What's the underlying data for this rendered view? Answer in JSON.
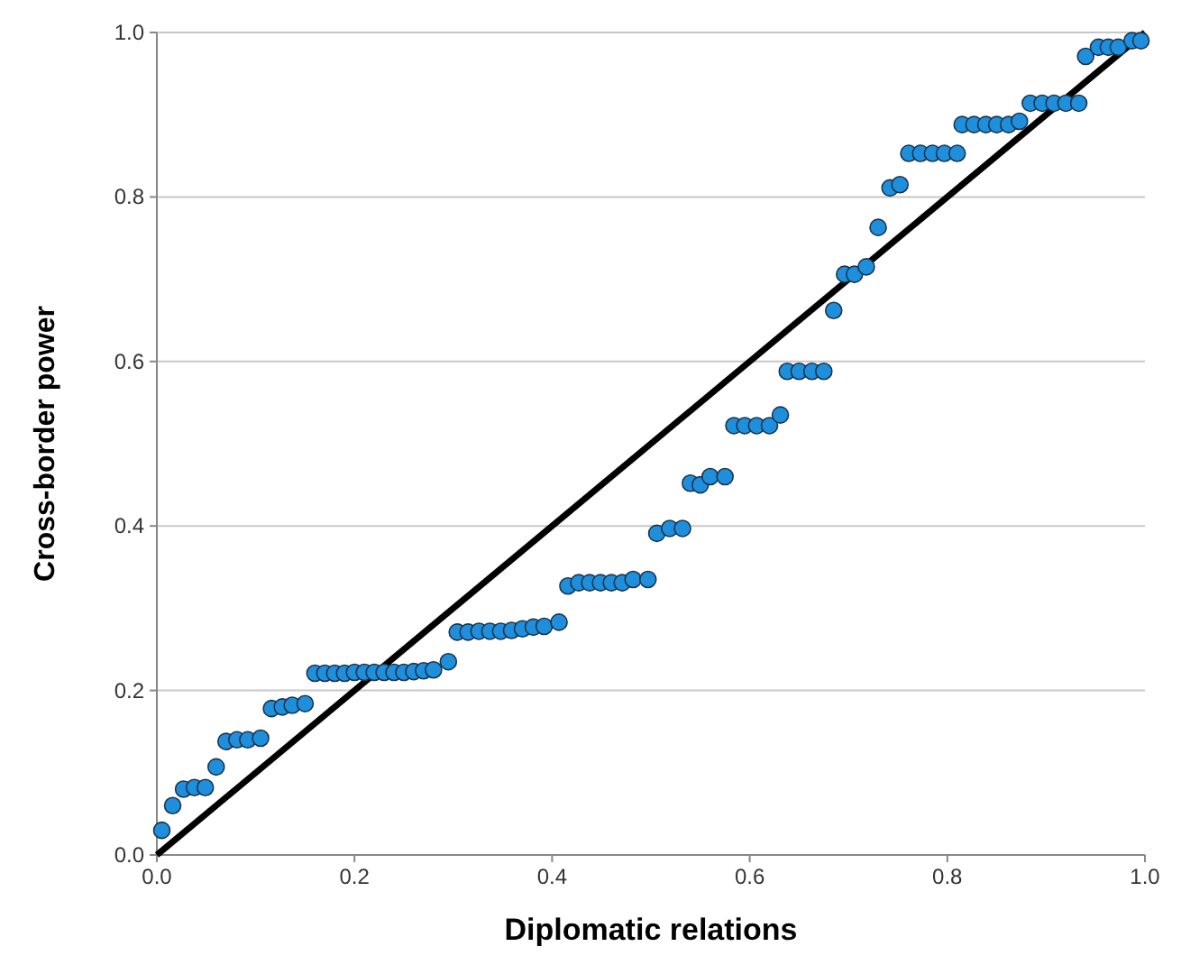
{
  "chart_data": {
    "type": "scatter",
    "xlabel": "Diplomatic relations",
    "ylabel": "Cross-border power",
    "xlim": [
      0,
      1
    ],
    "ylim": [
      0,
      1
    ],
    "xticks": [
      {
        "value": 0,
        "label": "0.0"
      },
      {
        "value": 0.2,
        "label": "0.2"
      },
      {
        "value": 0.4,
        "label": "0.4"
      },
      {
        "value": 0.6,
        "label": "0.6"
      },
      {
        "value": 0.8,
        "label": "0.8"
      },
      {
        "value": 1,
        "label": "1.0"
      }
    ],
    "yticks": [
      {
        "value": 0,
        "label": "0.0"
      },
      {
        "value": 0.2,
        "label": "0.2"
      },
      {
        "value": 0.4,
        "label": "0.4"
      },
      {
        "value": 0.6,
        "label": "0.6"
      },
      {
        "value": 0.8,
        "label": "0.8"
      },
      {
        "value": 1,
        "label": "1.0"
      }
    ],
    "grid": "y",
    "marker": "circle",
    "series": [
      {
        "color": "#1f8fdc",
        "x": [
          0.005,
          0.016,
          0.027,
          0.038,
          0.049,
          0.06,
          0.07,
          0.081,
          0.092,
          0.105,
          0.116,
          0.127,
          0.137,
          0.15,
          0.16,
          0.17,
          0.18,
          0.19,
          0.2,
          0.21,
          0.22,
          0.23,
          0.24,
          0.25,
          0.26,
          0.27,
          0.28,
          0.295,
          0.304,
          0.315,
          0.326,
          0.337,
          0.348,
          0.359,
          0.37,
          0.381,
          0.392,
          0.407,
          0.416,
          0.427,
          0.438,
          0.449,
          0.46,
          0.471,
          0.482,
          0.497,
          0.506,
          0.519,
          0.532,
          0.54,
          0.55,
          0.56,
          0.575,
          0.584,
          0.595,
          0.607,
          0.62,
          0.631,
          0.638,
          0.65,
          0.663,
          0.675,
          0.685,
          0.696,
          0.706,
          0.718,
          0.73,
          0.742,
          0.752,
          0.761,
          0.773,
          0.785,
          0.797,
          0.81,
          0.815,
          0.827,
          0.839,
          0.85,
          0.862,
          0.873,
          0.884,
          0.896,
          0.908,
          0.92,
          0.933,
          0.94,
          0.953,
          0.963,
          0.973,
          0.987,
          0.996
        ],
        "values": [
          0.03,
          0.06,
          0.08,
          0.082,
          0.082,
          0.107,
          0.138,
          0.14,
          0.14,
          0.142,
          0.178,
          0.18,
          0.182,
          0.184,
          0.221,
          0.221,
          0.221,
          0.221,
          0.222,
          0.222,
          0.222,
          0.222,
          0.222,
          0.222,
          0.223,
          0.224,
          0.225,
          0.235,
          0.271,
          0.271,
          0.272,
          0.272,
          0.272,
          0.273,
          0.275,
          0.277,
          0.278,
          0.283,
          0.327,
          0.331,
          0.331,
          0.331,
          0.331,
          0.331,
          0.335,
          0.335,
          0.391,
          0.397,
          0.397,
          0.452,
          0.45,
          0.46,
          0.46,
          0.522,
          0.522,
          0.522,
          0.522,
          0.535,
          0.588,
          0.588,
          0.588,
          0.588,
          0.662,
          0.706,
          0.706,
          0.715,
          0.763,
          0.811,
          0.815,
          0.853,
          0.853,
          0.853,
          0.853,
          0.853,
          0.888,
          0.888,
          0.888,
          0.888,
          0.888,
          0.892,
          0.914,
          0.914,
          0.914,
          0.914,
          0.914,
          0.971,
          0.982,
          0.982,
          0.982,
          0.99,
          0.99
        ]
      },
      {
        "type": "line",
        "color": "#000000",
        "marker": "none",
        "x": [
          0,
          1
        ],
        "values": [
          0,
          1
        ]
      }
    ]
  }
}
